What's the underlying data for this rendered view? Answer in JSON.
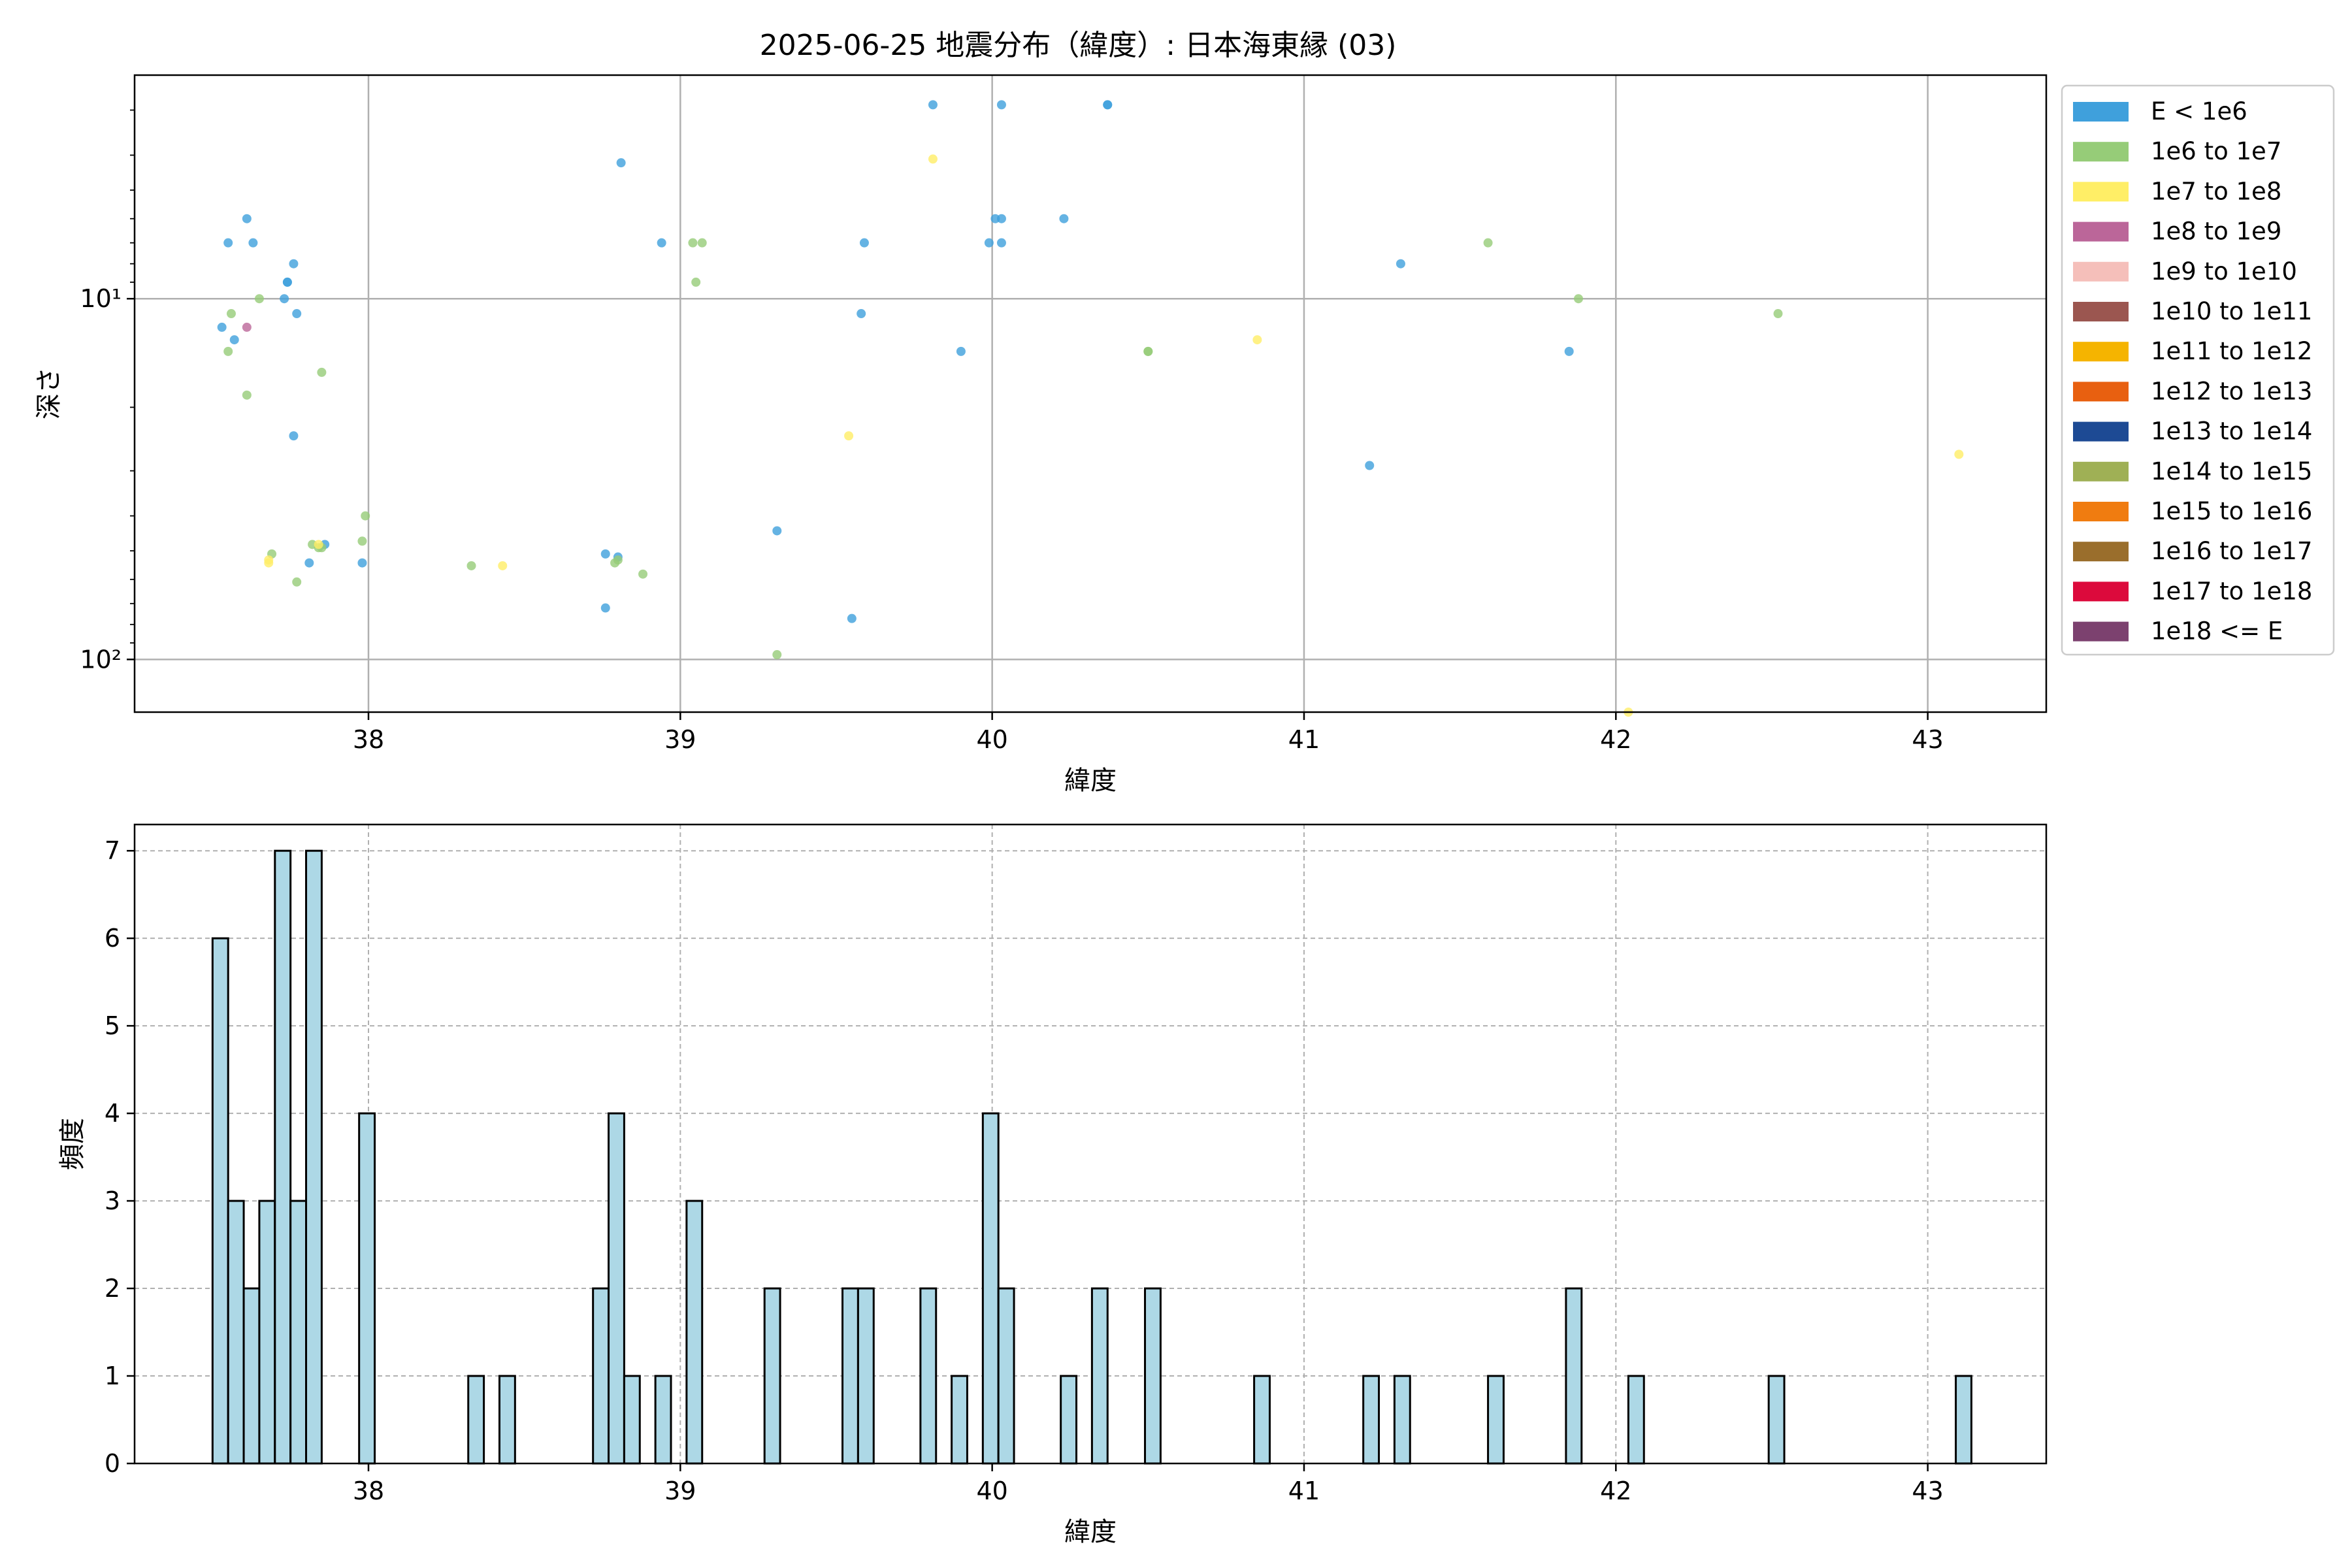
{
  "figure": {
    "title": "2025-06-25 地震分布（緯度）: 日本海東縁 (03)"
  },
  "chart_data": [
    {
      "type": "scatter",
      "title": "2025-06-25 地震分布（緯度）: 日本海東縁 (03)",
      "xlabel": "緯度",
      "ylabel": "深さ",
      "xlim": [
        37.25,
        43.38
      ],
      "ylim": [
        140,
        2.4
      ],
      "yscale": "log",
      "y_inverted": true,
      "grid": true,
      "legend_position": "outside-right",
      "xticks": [
        "38",
        "39",
        "40",
        "41",
        "42",
        "43"
      ],
      "yticks": [
        {
          "value": 10,
          "label": "10¹"
        },
        {
          "value": 100,
          "label": "10²"
        }
      ],
      "series": [
        {
          "name": "E < 1e6",
          "color": "#3fa0dc",
          "points": [
            [
              37.53,
              12.0
            ],
            [
              37.55,
              7.0
            ],
            [
              37.57,
              13.0
            ],
            [
              37.61,
              6.0
            ],
            [
              37.63,
              7.0
            ],
            [
              37.73,
              10.0
            ],
            [
              37.74,
              9.0
            ],
            [
              37.74,
              9.0
            ],
            [
              37.76,
              8.0
            ],
            [
              37.76,
              24.0
            ],
            [
              37.77,
              11.0
            ],
            [
              37.81,
              54.0
            ],
            [
              37.86,
              48.0
            ],
            [
              37.98,
              54.0
            ],
            [
              38.76,
              51.0
            ],
            [
              38.76,
              72.0
            ],
            [
              38.8,
              52.0
            ],
            [
              38.81,
              4.2
            ],
            [
              38.94,
              7.0
            ],
            [
              39.31,
              44.0
            ],
            [
              39.55,
              77.0
            ],
            [
              39.58,
              11.0
            ],
            [
              39.59,
              7.0
            ],
            [
              39.81,
              2.9
            ],
            [
              39.9,
              14.0
            ],
            [
              39.99,
              7.0
            ],
            [
              40.01,
              6.0
            ],
            [
              40.03,
              6.0
            ],
            [
              40.03,
              7.0
            ],
            [
              40.03,
              2.9
            ],
            [
              40.23,
              6.0
            ],
            [
              40.37,
              2.9
            ],
            [
              40.37,
              2.9
            ],
            [
              41.21,
              29.0
            ],
            [
              41.31,
              8.0
            ],
            [
              41.85,
              14.0
            ]
          ]
        },
        {
          "name": "1e6 to 1e7",
          "color": "#96cc78",
          "points": [
            [
              37.55,
              14.0
            ],
            [
              37.56,
              11.0
            ],
            [
              37.61,
              18.5
            ],
            [
              37.65,
              10.0
            ],
            [
              37.69,
              51.0
            ],
            [
              37.77,
              61.0
            ],
            [
              37.82,
              48.0
            ],
            [
              37.84,
              49.0
            ],
            [
              37.85,
              16.0
            ],
            [
              37.85,
              49.0
            ],
            [
              37.98,
              47.0
            ],
            [
              37.99,
              40.0
            ],
            [
              38.33,
              55.0
            ],
            [
              38.79,
              54.0
            ],
            [
              38.8,
              53.0
            ],
            [
              38.88,
              58.0
            ],
            [
              39.04,
              7.0
            ],
            [
              39.05,
              9.0
            ],
            [
              39.07,
              7.0
            ],
            [
              39.31,
              97.0
            ],
            [
              40.5,
              14.0
            ],
            [
              40.5,
              14.0
            ],
            [
              41.59,
              7.0
            ],
            [
              41.88,
              10.0
            ],
            [
              42.52,
              11.0
            ]
          ]
        },
        {
          "name": "1e7 to 1e8",
          "color": "#ffee66",
          "points": [
            [
              37.68,
              54.0
            ],
            [
              37.68,
              53.0
            ],
            [
              37.84,
              48.0
            ],
            [
              38.43,
              55.0
            ],
            [
              39.54,
              24.0
            ],
            [
              39.81,
              4.1
            ],
            [
              40.85,
              13.0
            ],
            [
              42.04,
              140.0
            ],
            [
              43.1,
              27.0
            ]
          ]
        },
        {
          "name": "1e8 to 1e9",
          "color": "#bb6699",
          "points": [
            [
              37.61,
              12.0
            ]
          ]
        },
        {
          "name": "1e9 to 1e10",
          "color": "#f5bfba",
          "points": []
        },
        {
          "name": "1e10 to 1e11",
          "color": "#9b5650",
          "points": []
        },
        {
          "name": "1e11 to 1e12",
          "color": "#f5b400",
          "points": []
        },
        {
          "name": "1e12 to 1e13",
          "color": "#e86010",
          "points": []
        },
        {
          "name": "1e13 to 1e14",
          "color": "#1d4a94",
          "points": []
        },
        {
          "name": "1e14 to 1e15",
          "color": "#9fb055",
          "points": []
        },
        {
          "name": "1e15 to 1e16",
          "color": "#f07c10",
          "points": []
        },
        {
          "name": "1e16 to 1e17",
          "color": "#9a6e2c",
          "points": []
        },
        {
          "name": "1e17 to 1e18",
          "color": "#dc0a3c",
          "points": []
        },
        {
          "name": "1e18 <= E",
          "color": "#7c416f",
          "points": []
        }
      ]
    },
    {
      "type": "bar",
      "title": "",
      "xlabel": "緯度",
      "ylabel": "頻度",
      "xlim": [
        37.25,
        43.38
      ],
      "ylim": [
        0,
        7.3
      ],
      "grid": true,
      "bar_color": "#add8e6",
      "edge_color": "#000000",
      "bin_width": 0.05,
      "xticks": [
        "38",
        "39",
        "40",
        "41",
        "42",
        "43"
      ],
      "yticks": [
        "0",
        "1",
        "2",
        "3",
        "4",
        "5",
        "6",
        "7"
      ],
      "bins": [
        {
          "x": 37.5,
          "count": 6
        },
        {
          "x": 37.55,
          "count": 3
        },
        {
          "x": 37.6,
          "count": 2
        },
        {
          "x": 37.65,
          "count": 3
        },
        {
          "x": 37.7,
          "count": 7
        },
        {
          "x": 37.75,
          "count": 3
        },
        {
          "x": 37.8,
          "count": 7
        },
        {
          "x": 37.97,
          "count": 4
        },
        {
          "x": 38.32,
          "count": 1
        },
        {
          "x": 38.42,
          "count": 1
        },
        {
          "x": 38.72,
          "count": 2
        },
        {
          "x": 38.77,
          "count": 4
        },
        {
          "x": 38.82,
          "count": 1
        },
        {
          "x": 38.92,
          "count": 1
        },
        {
          "x": 39.02,
          "count": 3
        },
        {
          "x": 39.27,
          "count": 2
        },
        {
          "x": 39.52,
          "count": 2
        },
        {
          "x": 39.57,
          "count": 2
        },
        {
          "x": 39.77,
          "count": 2
        },
        {
          "x": 39.87,
          "count": 1
        },
        {
          "x": 39.97,
          "count": 4
        },
        {
          "x": 40.02,
          "count": 2
        },
        {
          "x": 40.22,
          "count": 1
        },
        {
          "x": 40.32,
          "count": 2
        },
        {
          "x": 40.49,
          "count": 2
        },
        {
          "x": 40.84,
          "count": 1
        },
        {
          "x": 41.19,
          "count": 1
        },
        {
          "x": 41.29,
          "count": 1
        },
        {
          "x": 41.59,
          "count": 1
        },
        {
          "x": 41.84,
          "count": 2
        },
        {
          "x": 42.04,
          "count": 1
        },
        {
          "x": 42.49,
          "count": 1
        },
        {
          "x": 43.09,
          "count": 1
        }
      ]
    }
  ]
}
